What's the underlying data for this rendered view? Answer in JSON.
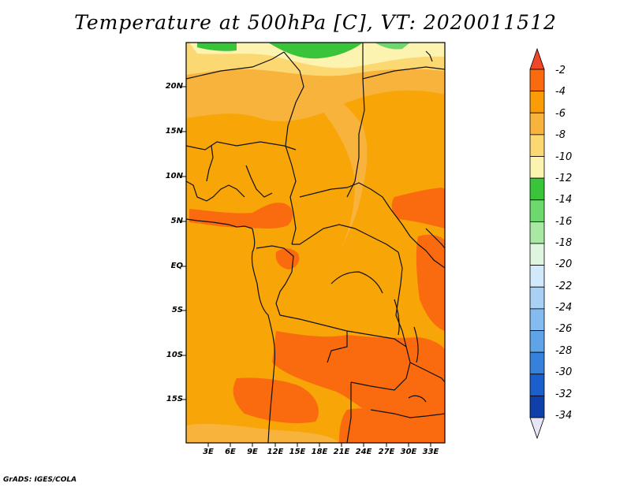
{
  "title": "Temperature at 500hPa [C], VT: 2020011512",
  "credit": "GrADS: IGES/COLA",
  "map": {
    "lat_labels": [
      "20N",
      "15N",
      "10N",
      "5N",
      "EQ",
      "5S",
      "10S",
      "15S"
    ],
    "lon_labels": [
      "3E",
      "6E",
      "9E",
      "12E",
      "15E",
      "18E",
      "21E",
      "24E",
      "27E",
      "30E",
      "33E"
    ]
  },
  "colorbar": {
    "labels": [
      "-2",
      "-4",
      "-6",
      "-8",
      "-10",
      "-12",
      "-14",
      "-16",
      "-18",
      "-20",
      "-22",
      "-24",
      "-26",
      "-28",
      "-30",
      "-32",
      "-34"
    ],
    "colors": [
      "#f0472a",
      "#fa6b0f",
      "#f99c06",
      "#f8b33d",
      "#fbd872",
      "#fcf3b0",
      "#3ac43a",
      "#6dd96d",
      "#a8e8a3",
      "#dff5df",
      "#d2e9fb",
      "#a9d1f6",
      "#84bcf0",
      "#5ea4e7",
      "#3681dc",
      "#1a5fcb",
      "#0f3fa8",
      "#0a1f78"
    ]
  }
}
